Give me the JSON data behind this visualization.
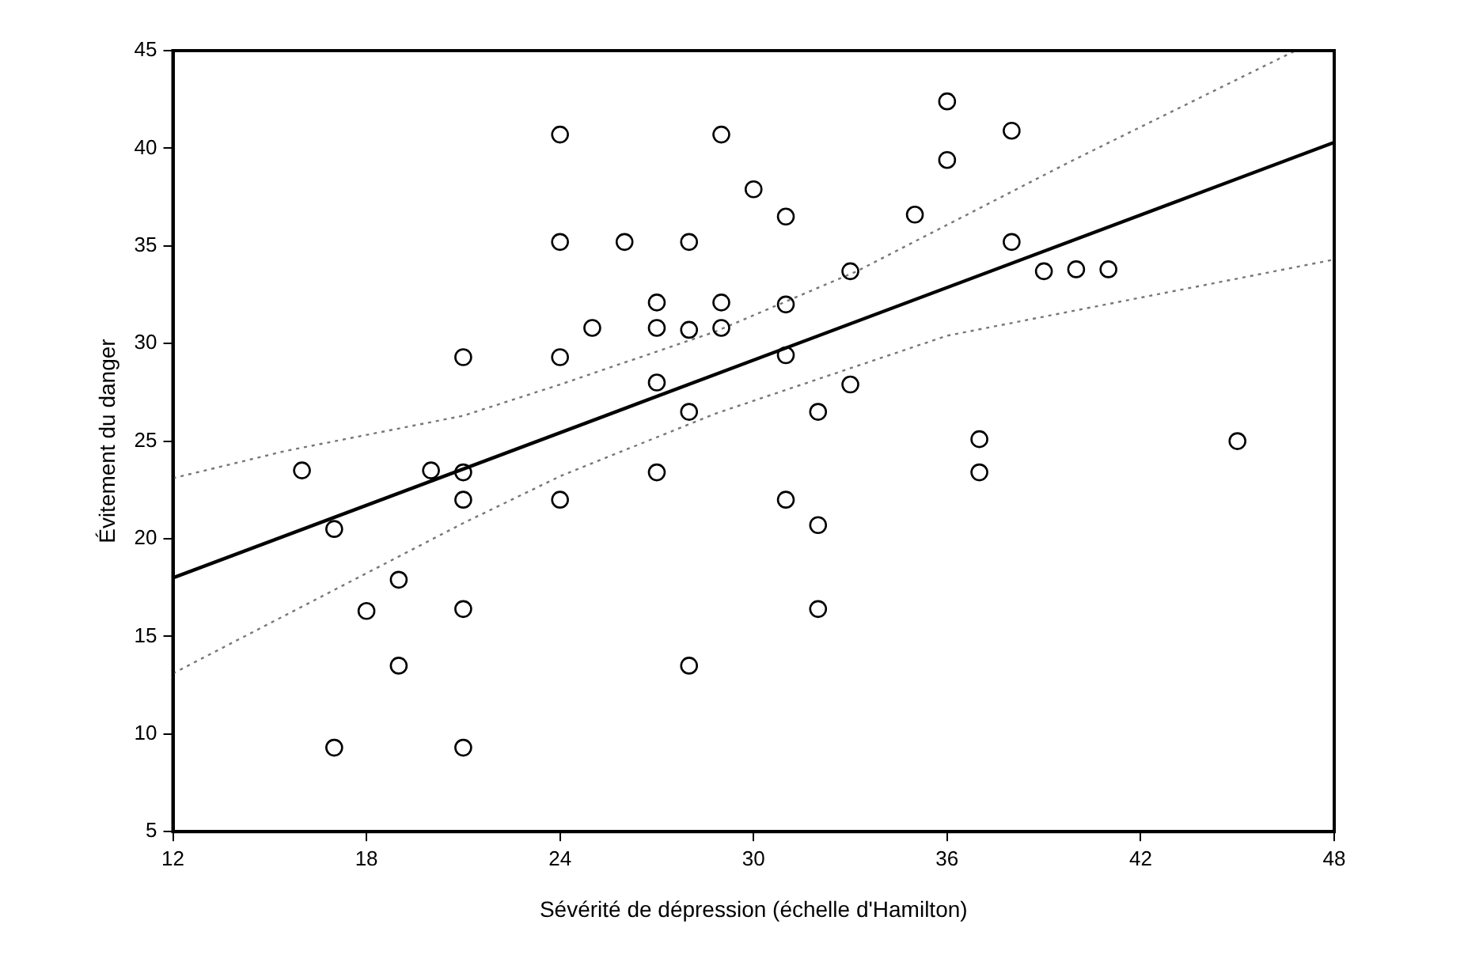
{
  "chart_data": {
    "type": "scatter",
    "xlabel": "Sévérité de dépression (échelle d'Hamilton)",
    "ylabel": "Évitement du danger",
    "xlim": [
      12,
      48
    ],
    "ylim": [
      5,
      45
    ],
    "xticks": [
      12,
      18,
      24,
      30,
      36,
      42,
      48
    ],
    "yticks": [
      5,
      10,
      15,
      20,
      25,
      30,
      35,
      40,
      45
    ],
    "grid": false,
    "legend": false,
    "marker": "circle",
    "series": [
      {
        "color": "#000000",
        "x": [
          16,
          17,
          20,
          21,
          21,
          24,
          27,
          19,
          18,
          21,
          19,
          28,
          17,
          21,
          24,
          29,
          30,
          24,
          26,
          28,
          27,
          29,
          25,
          27,
          28,
          29,
          21,
          24,
          27,
          28,
          36,
          38,
          36,
          31,
          35,
          38,
          33,
          39,
          40,
          41,
          31,
          31,
          33,
          32,
          37,
          45,
          37,
          31,
          32,
          32
        ],
        "values": [
          23.5,
          20.5,
          23.5,
          23.4,
          22,
          22,
          23.4,
          17.9,
          16.3,
          16.4,
          13.5,
          13.5,
          9.3,
          9.3,
          40.7,
          40.7,
          37.9,
          35.2,
          35.2,
          35.2,
          32.1,
          32.1,
          30.8,
          30.8,
          30.7,
          30.8,
          29.3,
          29.3,
          28,
          26.5,
          42.4,
          40.9,
          39.4,
          36.5,
          36.6,
          35.2,
          33.7,
          33.7,
          33.8,
          33.8,
          32,
          29.4,
          27.9,
          26.5,
          25.1,
          25,
          23.4,
          22,
          20.7,
          16.4
        ]
      },
      {
        "type": "line",
        "color": "#000000",
        "line_style": "solid",
        "marker": "none",
        "x": [
          12,
          48
        ],
        "values": [
          18,
          40.3
        ]
      },
      {
        "type": "line",
        "color": "#777777",
        "line_style": "dotted",
        "marker": "none",
        "x": [
          12,
          15.5,
          21,
          24,
          28.8,
          33.2,
          39.8,
          46.8
        ],
        "values": [
          23.1,
          24.5,
          26.3,
          27.9,
          30.6,
          33.7,
          39.3,
          45
        ]
      },
      {
        "type": "line",
        "color": "#777777",
        "line_style": "dotted",
        "marker": "none",
        "x": [
          12,
          21,
          24,
          28.8,
          36,
          48
        ],
        "values": [
          13.1,
          20.8,
          23.2,
          26.4,
          30.4,
          34.3
        ]
      }
    ]
  }
}
